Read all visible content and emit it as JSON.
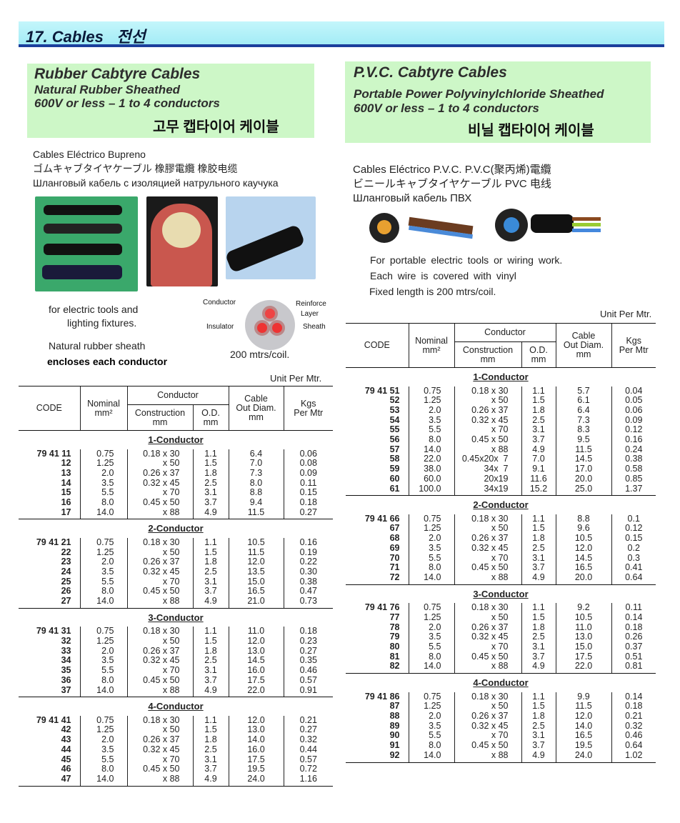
{
  "header": {
    "title": "17. Cables   전선"
  },
  "left": {
    "title": "Rubber Cabtyre Cables",
    "subtitle1": "Natural Rubber Sheathed",
    "subtitle2": "600V or less – 1 to 4 conductors",
    "korean": "고무 캡타이어 케이블",
    "ml": [
      "Cables Eléctrico Bupreno",
      "ゴムキャブタイヤケーブル  橡膠電纜   橡胶电缆",
      "Шланговый кабель с изоляцией натрульного каучука"
    ],
    "desc1": "for electric tools and",
    "desc2": "lighting fixtures.",
    "desc3": "Natural rubber sheath",
    "desc4": "encloses each conductor",
    "diagram": {
      "conductor": "Conductor",
      "reinforce1": "Reinforce",
      "reinforce2": "Layer",
      "insulator": "Insulator",
      "sheath": "Sheath"
    },
    "coil": "200 mtrs/coil.",
    "unit": "Unit Per Mtr."
  },
  "right": {
    "title": "P.V.C. Cabtyre Cables",
    "subtitle1": "Portable Power Polyvinylchloride Sheathed",
    "subtitle2": "600V or less – 1 to 4 conductors",
    "korean": "비닐 캡타이어 케이블",
    "ml": [
      "Cables Eléctrico P.V.C. P.V.C(聚丙烯)電纜",
      "ビニールキャブタイヤケーブル    PVC 电线",
      "Шланговый кабель ПВХ"
    ],
    "desc1": "For portable electric tools or wiring work.",
    "desc2": "Each wire is covered with vinyl",
    "desc3": "Fixed length is 200 mtrs/coil.",
    "unit": "Unit Per Mtr."
  },
  "columns": {
    "code": "CODE",
    "nominal": "Nominal",
    "nominal_unit": "mm²",
    "conductor": "Conductor",
    "construction": "Construction",
    "construction_unit": "mm",
    "od": "O.D.",
    "od_unit": "mm",
    "cable1": "Cable",
    "cable2": "Out Diam.",
    "cable3": "mm",
    "kgs1": "Kgs",
    "kgs2": "Per Mtr"
  },
  "left_table": [
    {
      "section": "1-Conductor",
      "rows": [
        [
          "79 41 11",
          "0.75",
          "0.18 x 30",
          "1.1",
          "6.4",
          "0.06"
        ],
        [
          "12",
          "1.25",
          "x 50",
          "1.5",
          "7.0",
          "0.08"
        ],
        [
          "13",
          "2.0",
          "0.26 x 37",
          "1.8",
          "7.3",
          "0.09"
        ],
        [
          "14",
          "3.5",
          "0.32 x 45",
          "2.5",
          "8.0",
          "0.11"
        ],
        [
          "15",
          "5.5",
          "x 70",
          "3.1",
          "8.8",
          "0.15"
        ],
        [
          "16",
          "8.0",
          "0.45 x 50",
          "3.7",
          "9.4",
          "0.18"
        ],
        [
          "17",
          "14.0",
          "x 88",
          "4.9",
          "11.5",
          "0.27"
        ]
      ]
    },
    {
      "section": "2-Conductor",
      "rows": [
        [
          "79 41 21",
          "0.75",
          "0.18 x 30",
          "1.1",
          "10.5",
          "0.16"
        ],
        [
          "22",
          "1.25",
          "x 50",
          "1.5",
          "11.5",
          "0.19"
        ],
        [
          "23",
          "2.0",
          "0.26 x 37",
          "1.8",
          "12.0",
          "0.22"
        ],
        [
          "24",
          "3.5",
          "0.32 x 45",
          "2.5",
          "13.5",
          "0.30"
        ],
        [
          "25",
          "5.5",
          "x 70",
          "3.1",
          "15.0",
          "0.38"
        ],
        [
          "26",
          "8.0",
          "0.45 x 50",
          "3.7",
          "16.5",
          "0.47"
        ],
        [
          "27",
          "14.0",
          "x 88",
          "4.9",
          "21.0",
          "0.73"
        ]
      ]
    },
    {
      "section": "3-Conductor",
      "rows": [
        [
          "79 41 31",
          "0.75",
          "0.18 x 30",
          "1.1",
          "11.0",
          "0.18"
        ],
        [
          "32",
          "1.25",
          "x 50",
          "1.5",
          "12.0",
          "0.23"
        ],
        [
          "33",
          "2.0",
          "0.26 x 37",
          "1.8",
          "13.0",
          "0.27"
        ],
        [
          "34",
          "3.5",
          "0.32 x 45",
          "2.5",
          "14.5",
          "0.35"
        ],
        [
          "35",
          "5.5",
          "x 70",
          "3.1",
          "16.0",
          "0.46"
        ],
        [
          "36",
          "8.0",
          "0.45 x 50",
          "3.7",
          "17.5",
          "0.57"
        ],
        [
          "37",
          "14.0",
          "x 88",
          "4.9",
          "22.0",
          "0.91"
        ]
      ]
    },
    {
      "section": "4-Conductor",
      "rows": [
        [
          "79 41 41",
          "0.75",
          "0.18 x 30",
          "1.1",
          "12.0",
          "0.21"
        ],
        [
          "42",
          "1.25",
          "x 50",
          "1.5",
          "13.0",
          "0.27"
        ],
        [
          "43",
          "2.0",
          "0.26 x 37",
          "1.8",
          "14.0",
          "0.32"
        ],
        [
          "44",
          "3.5",
          "0.32 x 45",
          "2.5",
          "16.0",
          "0.44"
        ],
        [
          "45",
          "5.5",
          "x 70",
          "3.1",
          "17.5",
          "0.57"
        ],
        [
          "46",
          "8.0",
          "0.45 x 50",
          "3.7",
          "19.5",
          "0.72"
        ],
        [
          "47",
          "14.0",
          "x 88",
          "4.9",
          "24.0",
          "1.16"
        ]
      ]
    }
  ],
  "right_table": [
    {
      "section": "1-Conductor",
      "rows": [
        [
          "79 41 51",
          "0.75",
          "0.18 x 30",
          "1.1",
          "5.7",
          "0.04"
        ],
        [
          "52",
          "1.25",
          "x 50",
          "1.5",
          "6.1",
          "0.05"
        ],
        [
          "53",
          "2.0",
          "0.26 x 37",
          "1.8",
          "6.4",
          "0.06"
        ],
        [
          "54",
          "3.5",
          "0.32 x 45",
          "2.5",
          "7.3",
          "0.09"
        ],
        [
          "55",
          "5.5",
          "x 70",
          "3.1",
          "8.3",
          "0.12"
        ],
        [
          "56",
          "8.0",
          "0.45 x 50",
          "3.7",
          "9.5",
          "0.16"
        ],
        [
          "57",
          "14.0",
          "x 88",
          "4.9",
          "11.5",
          "0.24"
        ],
        [
          "58",
          "22.0",
          "0.45x20x  7",
          "7.0",
          "14.5",
          "0.38"
        ],
        [
          "59",
          "38.0",
          "34x  7",
          "9.1",
          "17.0",
          "0.58"
        ],
        [
          "60",
          "60.0",
          "20x19",
          "11.6",
          "20.0",
          "0.85"
        ],
        [
          "61",
          "100.0",
          "34x19",
          "15.2",
          "25.0",
          "1.37"
        ]
      ]
    },
    {
      "section": "2-Conductor",
      "rows": [
        [
          "79 41 66",
          "0.75",
          "0.18 x 30",
          "1.1",
          "8.8",
          "0.1"
        ],
        [
          "67",
          "1.25",
          "x 50",
          "1.5",
          "9.6",
          "0.12"
        ],
        [
          "68",
          "2.0",
          "0.26 x 37",
          "1.8",
          "10.5",
          "0.15"
        ],
        [
          "69",
          "3.5",
          "0.32 x 45",
          "2.5",
          "12.0",
          "0.2"
        ],
        [
          "70",
          "5.5",
          "x 70",
          "3.1",
          "14.5",
          "0.3"
        ],
        [
          "71",
          "8.0",
          "0.45 x 50",
          "3.7",
          "16.5",
          "0.41"
        ],
        [
          "72",
          "14.0",
          "x 88",
          "4.9",
          "20.0",
          "0.64"
        ]
      ]
    },
    {
      "section": "3-Conductor",
      "rows": [
        [
          "79 41 76",
          "0.75",
          "0.18 x 30",
          "1.1",
          "9.2",
          "0.11"
        ],
        [
          "77",
          "1.25",
          "x 50",
          "1.5",
          "10.5",
          "0.14"
        ],
        [
          "78",
          "2.0",
          "0.26 x 37",
          "1.8",
          "11.0",
          "0.18"
        ],
        [
          "79",
          "3.5",
          "0.32 x 45",
          "2.5",
          "13.0",
          "0.26"
        ],
        [
          "80",
          "5.5",
          "x 70",
          "3.1",
          "15.0",
          "0.37"
        ],
        [
          "81",
          "8.0",
          "0.45 x 50",
          "3.7",
          "17.5",
          "0.51"
        ],
        [
          "82",
          "14.0",
          "x 88",
          "4.9",
          "22.0",
          "0.81"
        ]
      ]
    },
    {
      "section": "4-Conductor",
      "rows": [
        [
          "79 41 86",
          "0.75",
          "0.18 x 30",
          "1.1",
          "9.9",
          "0.14"
        ],
        [
          "87",
          "1.25",
          "x 50",
          "1.5",
          "11.5",
          "0.18"
        ],
        [
          "88",
          "2.0",
          "0.26 x 37",
          "1.8",
          "12.0",
          "0.21"
        ],
        [
          "89",
          "3.5",
          "0.32 x 45",
          "2.5",
          "14.0",
          "0.32"
        ],
        [
          "90",
          "5.5",
          "x 70",
          "3.1",
          "16.5",
          "0.46"
        ],
        [
          "91",
          "8.0",
          "0.45 x 50",
          "3.7",
          "19.5",
          "0.64"
        ],
        [
          "92",
          "14.0",
          "x 88",
          "4.9",
          "24.0",
          "1.02"
        ]
      ]
    }
  ]
}
